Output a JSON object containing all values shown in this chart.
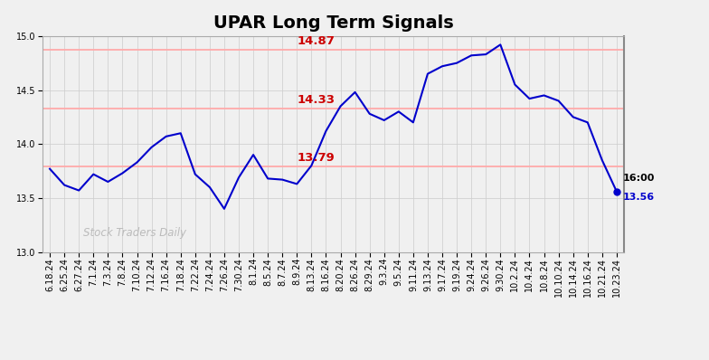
{
  "title": "UPAR Long Term Signals",
  "x_labels": [
    "6.18.24",
    "6.25.24",
    "6.27.24",
    "7.1.24",
    "7.3.24",
    "7.8.24",
    "7.10.24",
    "7.12.24",
    "7.16.24",
    "7.18.24",
    "7.22.24",
    "7.24.24",
    "7.26.24",
    "7.30.24",
    "8.1.24",
    "8.5.24",
    "8.7.24",
    "8.9.24",
    "8.13.24",
    "8.16.24",
    "8.20.24",
    "8.26.24",
    "8.29.24",
    "9.3.24",
    "9.5.24",
    "9.11.24",
    "9.13.24",
    "9.17.24",
    "9.19.24",
    "9.24.24",
    "9.26.24",
    "9.30.24",
    "10.2.24",
    "10.4.24",
    "10.8.24",
    "10.10.24",
    "10.14.24",
    "10.16.24",
    "10.21.24",
    "10.23.24"
  ],
  "y_values": [
    13.77,
    13.62,
    13.57,
    13.72,
    13.65,
    13.73,
    13.83,
    13.97,
    14.07,
    14.1,
    13.72,
    13.6,
    13.4,
    13.69,
    13.9,
    13.68,
    13.67,
    13.63,
    13.8,
    14.12,
    14.35,
    14.48,
    14.28,
    14.22,
    14.3,
    14.2,
    14.65,
    14.72,
    14.75,
    14.82,
    14.83,
    14.92,
    14.55,
    14.42,
    14.45,
    14.4,
    14.25,
    14.2,
    13.85,
    13.56
  ],
  "line_color": "#0000cc",
  "hlines": [
    14.87,
    14.33,
    13.79
  ],
  "hline_color": "#ffaaaa",
  "hline_labels": [
    "14.87",
    "14.33",
    "13.79"
  ],
  "hline_label_color": "#cc0000",
  "ylim": [
    13.0,
    15.0
  ],
  "yticks": [
    13.0,
    13.5,
    14.0,
    14.5,
    15.0
  ],
  "watermark": "Stock Traders Daily",
  "watermark_color": "#bbbbbb",
  "last_label": "16:00",
  "last_value_label": "13.56",
  "last_value_color": "#0000cc",
  "background_color": "#f0f0f0",
  "grid_color": "#cccccc",
  "title_fontsize": 14,
  "tick_fontsize": 7
}
